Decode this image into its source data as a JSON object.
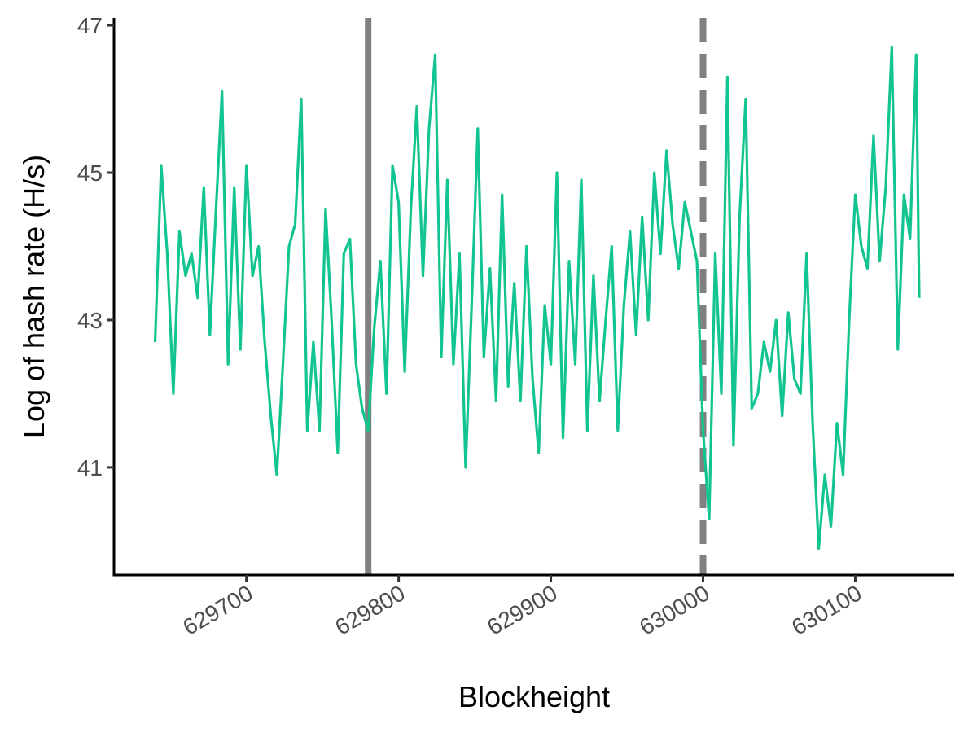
{
  "chart_data": {
    "type": "line",
    "xlabel": "Blockheight",
    "ylabel": "Log of hash rate (H/s)",
    "x": [
      629640,
      629644,
      629648,
      629652,
      629656,
      629660,
      629664,
      629668,
      629672,
      629676,
      629680,
      629684,
      629688,
      629692,
      629696,
      629700,
      629704,
      629708,
      629712,
      629716,
      629720,
      629724,
      629728,
      629732,
      629736,
      629740,
      629744,
      629748,
      629752,
      629756,
      629760,
      629764,
      629768,
      629772,
      629776,
      629780,
      629784,
      629788,
      629792,
      629796,
      629800,
      629804,
      629808,
      629812,
      629816,
      629820,
      629824,
      629828,
      629832,
      629836,
      629840,
      629844,
      629848,
      629852,
      629856,
      629860,
      629864,
      629868,
      629872,
      629876,
      629880,
      629884,
      629888,
      629892,
      629896,
      629900,
      629904,
      629908,
      629912,
      629916,
      629920,
      629924,
      629928,
      629932,
      629936,
      629940,
      629944,
      629948,
      629952,
      629956,
      629960,
      629964,
      629968,
      629972,
      629976,
      629980,
      629984,
      629988,
      629992,
      629996,
      630000,
      630004,
      630008,
      630012,
      630016,
      630020,
      630024,
      630028,
      630032,
      630036,
      630040,
      630044,
      630048,
      630052,
      630056,
      630060,
      630064,
      630068,
      630072,
      630076,
      630080,
      630084,
      630088,
      630092,
      630096,
      630100,
      630104,
      630108,
      630112,
      630116,
      630120,
      630124,
      630128,
      630132,
      630136,
      630140,
      630142
    ],
    "series": [
      {
        "name": "hash rate",
        "color": "#12c48f",
        "values": [
          42.7,
          45.1,
          43.9,
          42.0,
          44.2,
          43.6,
          43.9,
          43.3,
          44.8,
          42.8,
          44.5,
          46.1,
          42.4,
          44.8,
          42.6,
          45.1,
          43.6,
          44.0,
          42.7,
          41.7,
          40.9,
          42.4,
          44.0,
          44.3,
          46.0,
          41.5,
          42.7,
          41.5,
          44.5,
          43.0,
          41.2,
          43.9,
          44.1,
          42.4,
          41.8,
          41.5,
          42.9,
          43.8,
          42.0,
          45.1,
          44.6,
          42.3,
          44.5,
          45.9,
          43.6,
          45.6,
          46.6,
          42.5,
          44.9,
          42.4,
          43.9,
          41.0,
          43.2,
          45.6,
          42.5,
          43.7,
          41.9,
          44.7,
          42.1,
          43.5,
          41.9,
          44.0,
          42.2,
          41.2,
          43.2,
          42.4,
          45.0,
          41.4,
          43.8,
          42.4,
          44.9,
          41.5,
          43.6,
          41.9,
          43.0,
          44.0,
          41.5,
          43.2,
          44.2,
          42.8,
          44.4,
          43.0,
          45.0,
          43.9,
          45.3,
          44.3,
          43.7,
          44.6,
          44.2,
          43.8,
          41.5,
          40.3,
          43.9,
          42.0,
          46.3,
          41.3,
          44.4,
          46.0,
          41.8,
          42.0,
          42.7,
          42.3,
          43.0,
          41.7,
          43.1,
          42.2,
          42.0,
          43.9,
          41.6,
          39.9,
          40.9,
          40.2,
          41.6,
          40.9,
          43.0,
          44.7,
          44.0,
          43.7,
          45.5,
          43.8,
          44.8,
          46.7,
          42.6,
          44.7,
          44.1,
          46.6,
          43.3
        ]
      }
    ],
    "xlim": [
      629613,
      630165
    ],
    "xticks": [
      629700,
      629800,
      629900,
      630000,
      630100
    ],
    "ylim": [
      39.54,
      47.1
    ],
    "yticks": [
      41,
      43,
      45,
      47
    ],
    "vlines": [
      {
        "x": 629780,
        "style": "solid",
        "color": "#808080"
      },
      {
        "x": 630000,
        "style": "dashed",
        "color": "#808080"
      }
    ]
  }
}
